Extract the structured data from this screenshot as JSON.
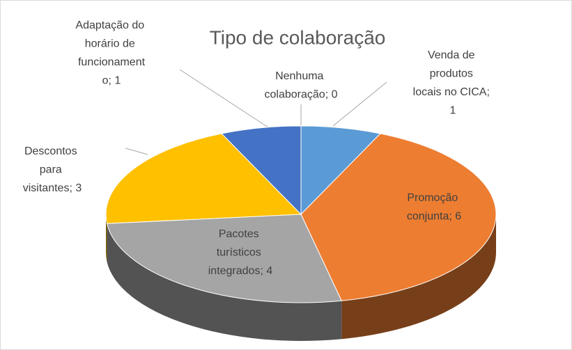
{
  "chart_data": {
    "type": "pie3d",
    "title": "Tipo de colaboração",
    "values": [
      0,
      1,
      6,
      4,
      3,
      1
    ],
    "value_labels": [
      "Nenhuma colaboração; 0",
      "Venda de produtos locais no CICA; 1",
      "Promoção conjunta; 6",
      "Pacotes turísticos integrados; 4",
      "Descontos para visitantes; 3",
      "Adaptação do horário de funcionamento; 1"
    ],
    "colors": [
      "#70ad47",
      "#5b9bd5",
      "#ed7d31",
      "#a5a5a5",
      "#ffc000",
      "#4472c4"
    ]
  }
}
